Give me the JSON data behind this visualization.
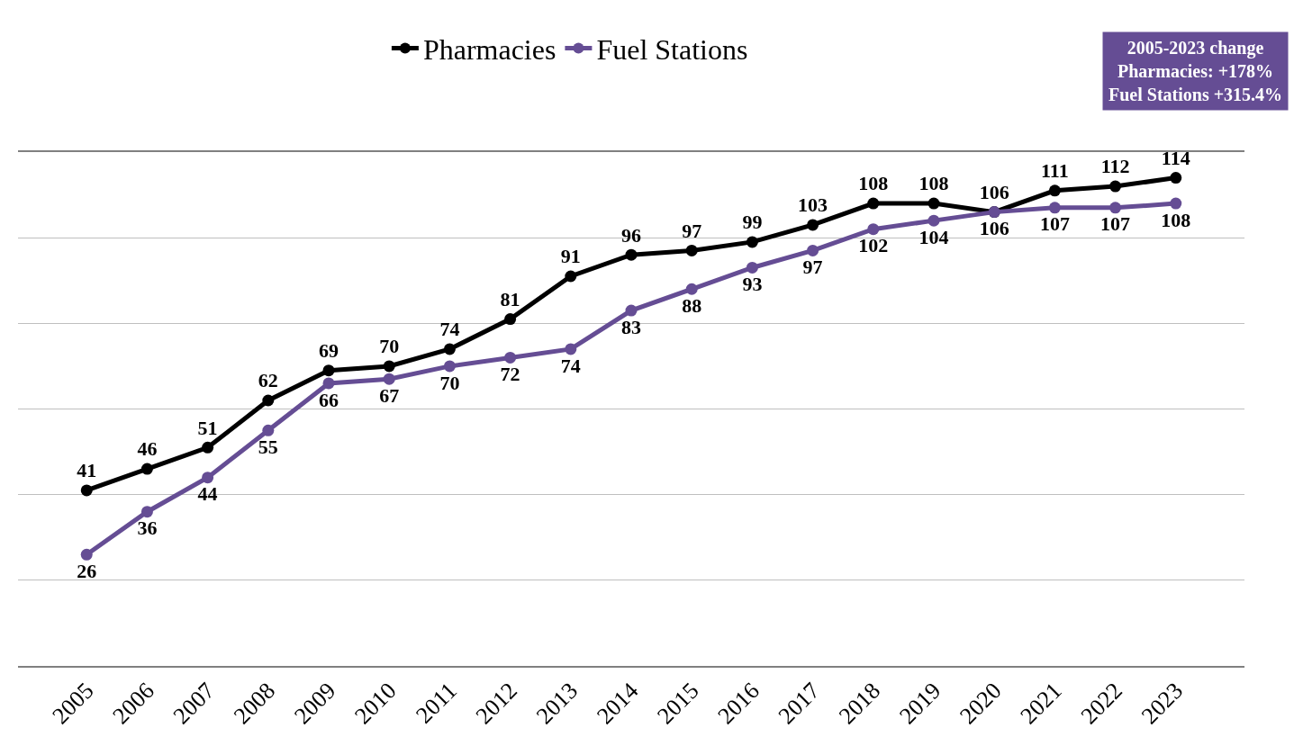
{
  "chart_data": {
    "type": "line",
    "categories": [
      "2005",
      "2006",
      "2007",
      "2008",
      "2009",
      "2010",
      "2011",
      "2012",
      "2013",
      "2014",
      "2015",
      "2016",
      "2017",
      "2018",
      "2019",
      "2020",
      "2021",
      "2022",
      "2023"
    ],
    "series": [
      {
        "name": "Pharmacies",
        "color": "#000000",
        "values": [
          41,
          46,
          51,
          62,
          69,
          70,
          74,
          81,
          91,
          96,
          97,
          99,
          103,
          108,
          108,
          106,
          111,
          112,
          114
        ]
      },
      {
        "name": "Fuel Stations",
        "color": "#654d94",
        "values": [
          26,
          36,
          44,
          55,
          66,
          67,
          70,
          72,
          74,
          83,
          88,
          93,
          97,
          102,
          104,
          106,
          107,
          107,
          108
        ]
      }
    ],
    "ylim": [
      0,
      120
    ],
    "yticks": [
      {
        "value": 0,
        "label": null
      },
      {
        "value": 20,
        "label": null
      },
      {
        "value": 40,
        "label": null
      },
      {
        "value": 60,
        "label": null
      },
      {
        "value": 80,
        "label": null
      },
      {
        "value": 100,
        "label": null
      },
      {
        "value": 120,
        "label": null
      }
    ],
    "tick_labels": "x",
    "grid": "y",
    "legend": "top",
    "marker": "circle",
    "line_style": "solid",
    "data_labels": true,
    "annotations": [
      "2005-2023 change\nPharmacies: +178%\nFuel Stations +315.4%"
    ]
  }
}
